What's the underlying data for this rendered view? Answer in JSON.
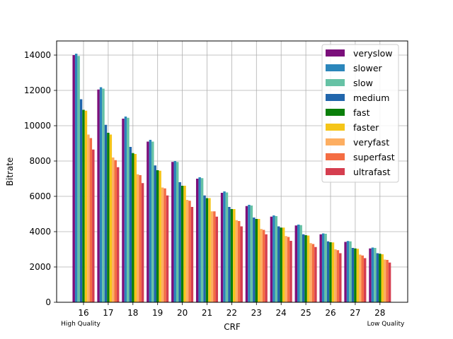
{
  "chart_data": {
    "type": "bar",
    "xlabel": "CRF",
    "ylabel": "Bitrate",
    "ylim": [
      0,
      14800
    ],
    "yticks": [
      0,
      2000,
      4000,
      6000,
      8000,
      10000,
      12000,
      14000
    ],
    "grid": true,
    "legend_position": "top-right",
    "categories": [
      "16",
      "17",
      "18",
      "19",
      "20",
      "21",
      "22",
      "23",
      "24",
      "25",
      "26",
      "27",
      "28"
    ],
    "x_end_labels": {
      "left": "High Quality",
      "right": "Low Quality"
    },
    "series": [
      {
        "name": "veryslow",
        "color": "#7b0f7b",
        "values": [
          14000,
          12050,
          10400,
          9100,
          7950,
          7000,
          6200,
          5450,
          4850,
          4350,
          3850,
          3420,
          3050
        ]
      },
      {
        "name": "slower",
        "color": "#2b86bb",
        "values": [
          14080,
          12180,
          10520,
          9200,
          8000,
          7080,
          6280,
          5520,
          4920,
          4400,
          3900,
          3470,
          3100
        ]
      },
      {
        "name": "slow",
        "color": "#66c2a5",
        "values": [
          13950,
          12100,
          10450,
          9100,
          7950,
          7030,
          6220,
          5480,
          4880,
          4370,
          3880,
          3450,
          3080
        ]
      },
      {
        "name": "medium",
        "color": "#2166ac",
        "values": [
          11500,
          10050,
          8800,
          7750,
          6800,
          6050,
          5400,
          4800,
          4300,
          3850,
          3450,
          3080,
          2780
        ]
      },
      {
        "name": "fast",
        "color": "#0a7f0a",
        "values": [
          10900,
          9600,
          8450,
          7480,
          6600,
          5900,
          5280,
          4720,
          4230,
          3800,
          3400,
          3050,
          2750
        ]
      },
      {
        "name": "faster",
        "color": "#f5c518",
        "values": [
          10850,
          9500,
          8400,
          7450,
          6600,
          5900,
          5280,
          4720,
          4230,
          3780,
          3390,
          3030,
          2720
        ]
      },
      {
        "name": "veryfast",
        "color": "#fdae61",
        "values": [
          9500,
          8200,
          7250,
          6500,
          5800,
          5150,
          4650,
          4150,
          3750,
          3350,
          3000,
          2700,
          2420
        ]
      },
      {
        "name": "superfast",
        "color": "#f46d43",
        "values": [
          9300,
          8050,
          7200,
          6450,
          5750,
          5150,
          4600,
          4100,
          3700,
          3300,
          2950,
          2650,
          2400
        ]
      },
      {
        "name": "ultrafast",
        "color": "#d53e4f",
        "values": [
          8650,
          7650,
          6750,
          6050,
          5400,
          4850,
          4300,
          3850,
          3480,
          3130,
          2780,
          2500,
          2250
        ]
      }
    ]
  }
}
